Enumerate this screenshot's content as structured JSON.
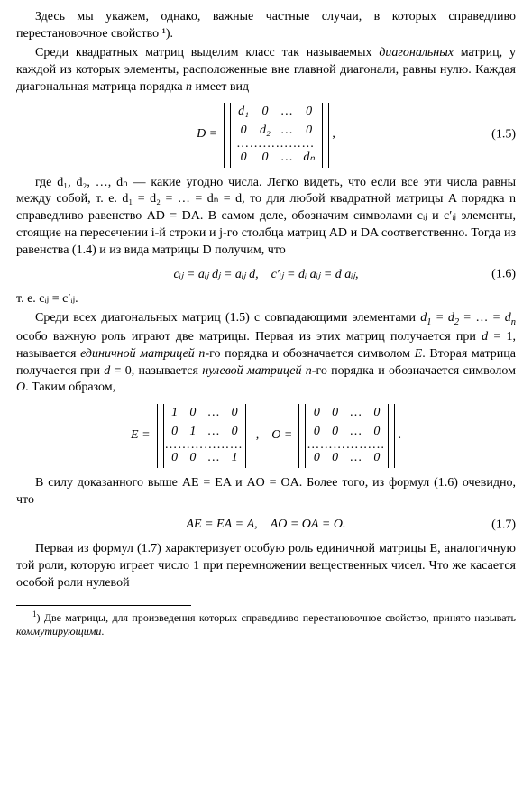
{
  "para1": "Здесь мы укажем, однако, важные частные случаи, в которых справедливо перестановочное свойство ¹).",
  "para2": "Среди квадратных матриц выделим класс так называемых диагональных матриц, у каждой из которых элементы, расположенные вне главной диагонали, равны нулю. Каждая диагональная матрица порядка n имеет вид",
  "eq15_lead": "D = ",
  "eq15_tail": ",",
  "eq15_num": "(1.5)",
  "matD": {
    "rows": [
      [
        "d₁",
        "0",
        "…",
        "0"
      ],
      [
        "0",
        "d₂",
        "…",
        "0"
      ],
      [
        "dots",
        "dots",
        "dots",
        "dots"
      ],
      [
        "0",
        "0",
        "…",
        "dₙ"
      ]
    ]
  },
  "para3": "где d₁, d₂, …, dₙ — какие угодно числа. Легко видеть, что если все эти числа равны между собой, т. е. d₁ = d₂ = … = dₙ = d, то для любой квадратной матрицы A порядка n справедливо равенство AD = DA. В самом деле, обозначим символами cᵢⱼ и c′ᵢⱼ элементы, стоящие на пересечении i-й строки и j-го столбца матриц AD и DA соответственно. Тогда из равенства (1.4) и из вида матрицы D получим, что",
  "eq16": "cᵢⱼ = aᵢⱼ dⱼ = aᵢⱼ d, c′ᵢⱼ = dᵢ aᵢⱼ = d aᵢⱼ,",
  "eq16_num": "(1.6)",
  "para4": "т. е. cᵢⱼ = c′ᵢⱼ.",
  "para5": "Среди всех диагональных матриц (1.5) с совпадающими элементами d₁ = d₂ = … = dₙ особо важную роль играют две матрицы. Первая из этих матриц получается при d = 1, называется единичной матрицей n-го порядка и обозначается символом E. Вторая матрица получается при d = 0, называется нулевой матрицей n-го порядка и обозначается символом O. Таким образом,",
  "eqEO_E": "E = ",
  "eqEO_mid": ", O = ",
  "eqEO_tail": ".",
  "matE": {
    "rows": [
      [
        "1",
        "0",
        "…",
        "0"
      ],
      [
        "0",
        "1",
        "…",
        "0"
      ],
      [
        "dots",
        "dots",
        "dots",
        "dots"
      ],
      [
        "0",
        "0",
        "…",
        "1"
      ]
    ]
  },
  "matO": {
    "rows": [
      [
        "0",
        "0",
        "…",
        "0"
      ],
      [
        "0",
        "0",
        "…",
        "0"
      ],
      [
        "dots",
        "dots",
        "dots",
        "dots"
      ],
      [
        "0",
        "0",
        "…",
        "0"
      ]
    ]
  },
  "para6": "В силу доказанного выше AE = EA и AO = OA. Более того, из формул (1.6) очевидно, что",
  "eq17": "AE = EA = A, AO = OA = O.",
  "eq17_num": "(1.7)",
  "para7": "Первая из формул (1.7) характеризует особую роль единичной матрицы E, аналогичную той роли, которую играет число 1 при перемножении вещественных чисел. Что же касается особой роли нулевой",
  "footnote": "¹) Две матрицы, для произведения которых справедливо перестановочное свойство, принято называть коммутирующими."
}
